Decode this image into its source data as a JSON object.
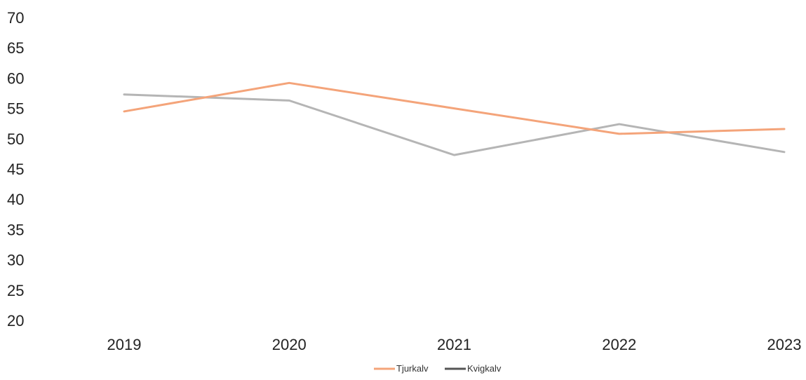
{
  "chart_data": {
    "type": "line",
    "categories": [
      "2019",
      "2020",
      "2021",
      "2022",
      "2023"
    ],
    "ylim": [
      20,
      70
    ],
    "y_ticks": [
      20,
      25,
      30,
      35,
      40,
      45,
      50,
      55,
      60,
      65,
      70
    ],
    "grid": false,
    "legend_position": "bottom-center",
    "series": [
      {
        "name": "Tjurkalv",
        "color": "#f4a47a",
        "values": [
          54.5,
          59.2,
          55.0,
          50.8,
          51.6
        ]
      },
      {
        "name": "Kvigkalv",
        "color": "#b5b5b5",
        "legend_color": "#555555",
        "values": [
          57.3,
          56.3,
          47.3,
          52.4,
          47.8
        ]
      }
    ]
  }
}
